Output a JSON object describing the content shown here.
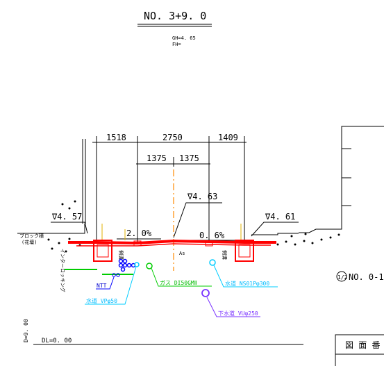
{
  "header": {
    "station": "NO. 3+9. 0",
    "gh": "GH=4. 65",
    "fh": "FH="
  },
  "dimensions": {
    "left_sidewalk": "1518",
    "carriageway": "2750",
    "right_sidewalk": "1409",
    "half_left": "1375",
    "half_right": "1375"
  },
  "levels": {
    "left": "∇4. 57",
    "center": "∇4. 63",
    "right": "∇4. 61"
  },
  "slopes": {
    "left": "2. 0%",
    "right": "0. 6%"
  },
  "labels": {
    "block_wall": "ブロック積",
    "block_wall_sub": "(花壇)",
    "interlocking": "インターロッキング",
    "gutter_left": "側溝",
    "gutter_right": "側溝",
    "pavement": "As"
  },
  "utilities": {
    "ntt": "NTT",
    "water_left": "水道 VPφ50",
    "gas": "ガス DI50GMⅡ",
    "water_right": "水道 NS01Pφ300",
    "sewer": "下水道 VUφ250"
  },
  "side_note": {
    "circle": "1/2",
    "text": "NO. 0-1"
  },
  "datum": {
    "dl": "DL=0. 00",
    "d_vertical": "D=9. 00"
  },
  "title_block": {
    "label": "図 面 番"
  }
}
